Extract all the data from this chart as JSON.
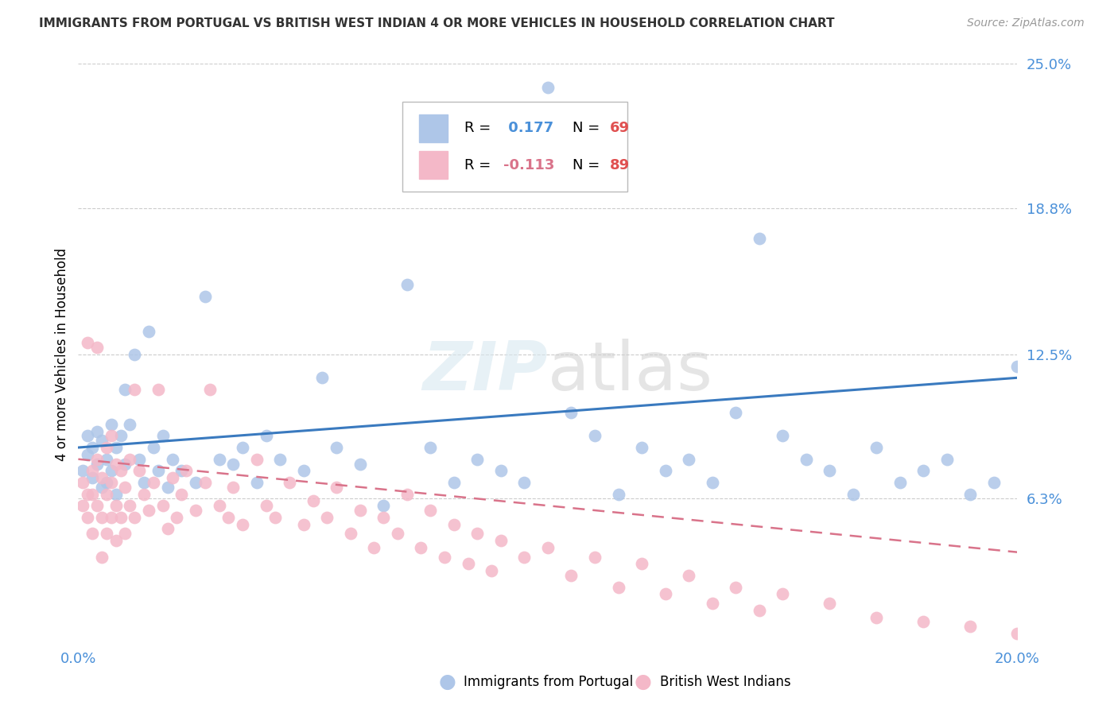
{
  "title": "IMMIGRANTS FROM PORTUGAL VS BRITISH WEST INDIAN 4 OR MORE VEHICLES IN HOUSEHOLD CORRELATION CHART",
  "source": "Source: ZipAtlas.com",
  "ylabel": "4 or more Vehicles in Household",
  "xlim": [
    0.0,
    0.2
  ],
  "ylim": [
    0.0,
    0.25
  ],
  "ytick_values": [
    0.063,
    0.125,
    0.188,
    0.25
  ],
  "ytick_labels": [
    "6.3%",
    "12.5%",
    "18.8%",
    "25.0%"
  ],
  "grid_color": "#cccccc",
  "background_color": "#ffffff",
  "portugal_color": "#aec6e8",
  "portugal_line_color": "#3a7abf",
  "bwi_color": "#f4b8c8",
  "bwi_line_color": "#d9738a",
  "legend_label_portugal": "Immigrants from Portugal",
  "legend_label_bwi": "British West Indians",
  "R_portugal": 0.177,
  "N_portugal": 69,
  "R_bwi": -0.113,
  "N_bwi": 89,
  "portugal_scatter_x": [
    0.001,
    0.002,
    0.002,
    0.003,
    0.003,
    0.004,
    0.004,
    0.005,
    0.005,
    0.006,
    0.006,
    0.007,
    0.007,
    0.008,
    0.008,
    0.009,
    0.01,
    0.01,
    0.011,
    0.012,
    0.013,
    0.014,
    0.015,
    0.016,
    0.017,
    0.018,
    0.019,
    0.02,
    0.022,
    0.025,
    0.027,
    0.03,
    0.033,
    0.035,
    0.038,
    0.04,
    0.043,
    0.048,
    0.052,
    0.055,
    0.06,
    0.065,
    0.07,
    0.075,
    0.08,
    0.085,
    0.09,
    0.095,
    0.1,
    0.105,
    0.11,
    0.115,
    0.12,
    0.125,
    0.13,
    0.135,
    0.14,
    0.145,
    0.15,
    0.155,
    0.16,
    0.165,
    0.17,
    0.175,
    0.18,
    0.185,
    0.19,
    0.195,
    0.2
  ],
  "portugal_scatter_y": [
    0.075,
    0.082,
    0.09,
    0.072,
    0.085,
    0.078,
    0.092,
    0.068,
    0.088,
    0.08,
    0.07,
    0.095,
    0.075,
    0.085,
    0.065,
    0.09,
    0.078,
    0.11,
    0.095,
    0.125,
    0.08,
    0.07,
    0.135,
    0.085,
    0.075,
    0.09,
    0.068,
    0.08,
    0.075,
    0.07,
    0.15,
    0.08,
    0.078,
    0.085,
    0.07,
    0.09,
    0.08,
    0.075,
    0.115,
    0.085,
    0.078,
    0.06,
    0.155,
    0.085,
    0.07,
    0.08,
    0.075,
    0.07,
    0.24,
    0.1,
    0.09,
    0.065,
    0.085,
    0.075,
    0.08,
    0.07,
    0.1,
    0.175,
    0.09,
    0.08,
    0.075,
    0.065,
    0.085,
    0.07,
    0.075,
    0.08,
    0.065,
    0.07,
    0.12
  ],
  "bwi_scatter_x": [
    0.001,
    0.001,
    0.002,
    0.002,
    0.002,
    0.003,
    0.003,
    0.003,
    0.004,
    0.004,
    0.004,
    0.005,
    0.005,
    0.005,
    0.006,
    0.006,
    0.006,
    0.007,
    0.007,
    0.007,
    0.008,
    0.008,
    0.008,
    0.009,
    0.009,
    0.01,
    0.01,
    0.011,
    0.011,
    0.012,
    0.012,
    0.013,
    0.014,
    0.015,
    0.016,
    0.017,
    0.018,
    0.019,
    0.02,
    0.021,
    0.022,
    0.023,
    0.025,
    0.027,
    0.028,
    0.03,
    0.032,
    0.033,
    0.035,
    0.038,
    0.04,
    0.042,
    0.045,
    0.048,
    0.05,
    0.053,
    0.055,
    0.058,
    0.06,
    0.063,
    0.065,
    0.068,
    0.07,
    0.073,
    0.075,
    0.078,
    0.08,
    0.083,
    0.085,
    0.088,
    0.09,
    0.095,
    0.1,
    0.105,
    0.11,
    0.115,
    0.12,
    0.125,
    0.13,
    0.135,
    0.14,
    0.145,
    0.15,
    0.16,
    0.17,
    0.18,
    0.19,
    0.2,
    0.21
  ],
  "bwi_scatter_y": [
    0.07,
    0.06,
    0.13,
    0.065,
    0.055,
    0.075,
    0.065,
    0.048,
    0.08,
    0.128,
    0.06,
    0.072,
    0.055,
    0.038,
    0.085,
    0.065,
    0.048,
    0.09,
    0.07,
    0.055,
    0.078,
    0.06,
    0.045,
    0.075,
    0.055,
    0.068,
    0.048,
    0.08,
    0.06,
    0.11,
    0.055,
    0.075,
    0.065,
    0.058,
    0.07,
    0.11,
    0.06,
    0.05,
    0.072,
    0.055,
    0.065,
    0.075,
    0.058,
    0.07,
    0.11,
    0.06,
    0.055,
    0.068,
    0.052,
    0.08,
    0.06,
    0.055,
    0.07,
    0.052,
    0.062,
    0.055,
    0.068,
    0.048,
    0.058,
    0.042,
    0.055,
    0.048,
    0.065,
    0.042,
    0.058,
    0.038,
    0.052,
    0.035,
    0.048,
    0.032,
    0.045,
    0.038,
    0.042,
    0.03,
    0.038,
    0.025,
    0.035,
    0.022,
    0.03,
    0.018,
    0.025,
    0.015,
    0.022,
    0.018,
    0.012,
    0.01,
    0.008,
    0.005,
    0.003
  ]
}
